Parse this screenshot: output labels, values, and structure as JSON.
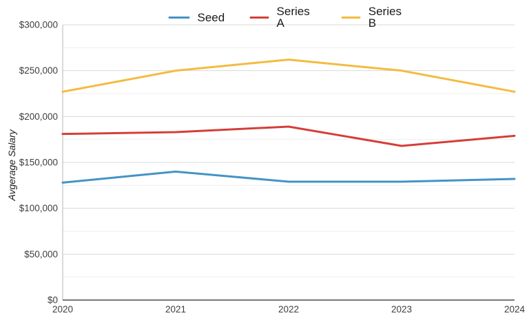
{
  "chart_data": {
    "type": "line",
    "title": "",
    "xlabel": "",
    "ylabel": "Avgerage Salary",
    "x": [
      2020,
      2021,
      2022,
      2023,
      2024
    ],
    "x_tick_labels": [
      "2020",
      "2021",
      "2022",
      "2023",
      "2024"
    ],
    "y_tick_labels": [
      "$0",
      "$50,000",
      "$100,000",
      "$150,000",
      "$200,000",
      "$250,000",
      "$300,000"
    ],
    "ylim": [
      0,
      300000
    ],
    "y_major_step": 50000,
    "y_minor_step": 25000,
    "grid": "horizontal, major and minor lines",
    "legend_position": "top-center",
    "markers": false,
    "series": [
      {
        "name": "Seed",
        "color": "#4493c4",
        "values": [
          128000,
          140000,
          129000,
          129000,
          132000
        ]
      },
      {
        "name": "Series A",
        "color": "#d53e37",
        "values": [
          181000,
          183000,
          189000,
          168000,
          179000
        ]
      },
      {
        "name": "Series B",
        "color": "#f3bb41",
        "values": [
          227000,
          250000,
          262000,
          250000,
          227000
        ]
      }
    ]
  }
}
